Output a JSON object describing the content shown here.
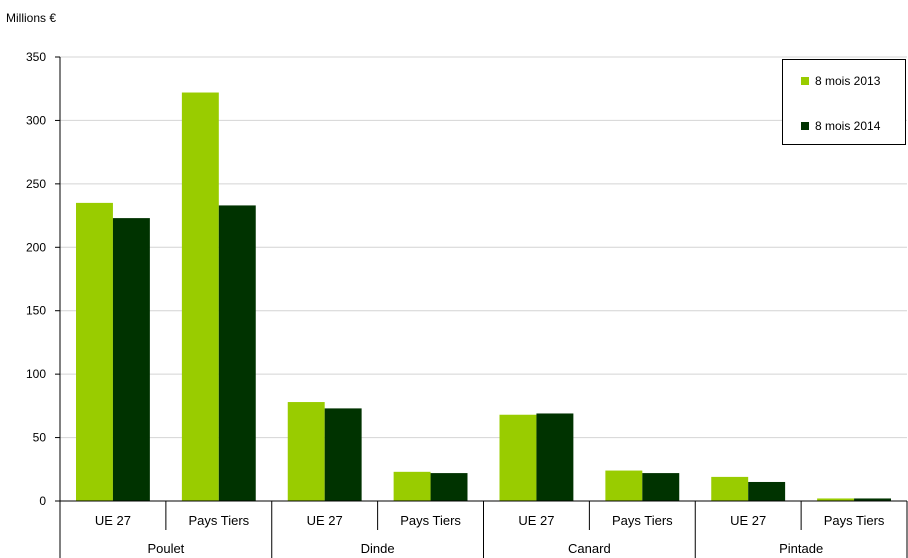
{
  "chart_data": {
    "type": "bar",
    "ylabel": "Millions €",
    "ylim": [
      0,
      350
    ],
    "yticks": [
      0,
      50,
      100,
      150,
      200,
      250,
      300,
      350
    ],
    "grid": true,
    "legend_position": "top-right",
    "categories": [
      "UE 27",
      "Pays Tiers",
      "UE 27",
      "Pays Tiers",
      "UE 27",
      "Pays Tiers",
      "UE 27",
      "Pays Tiers"
    ],
    "groups": [
      "Poulet",
      "Dinde",
      "Canard",
      "Pintade"
    ],
    "series": [
      {
        "name": "8 mois 2013",
        "color": "#99cc00",
        "values": [
          235,
          322,
          78,
          23,
          68,
          24,
          19,
          2
        ]
      },
      {
        "name": "8 mois 2014",
        "color": "#003300",
        "values": [
          223,
          233,
          73,
          22,
          69,
          22,
          15,
          2
        ]
      }
    ]
  }
}
